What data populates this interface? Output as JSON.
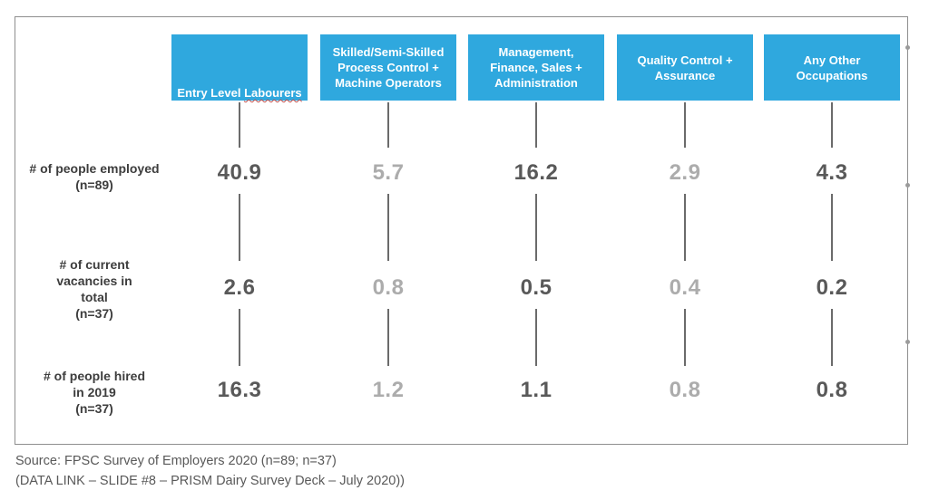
{
  "chart_data": {
    "type": "table",
    "columns": [
      "Entry Level Labourers",
      "Skilled/Semi-Skilled Process Control + Machine Operators",
      "Management, Finance, Sales + Administration",
      "Quality Control + Assurance",
      "Any Other Occupations"
    ],
    "rows": [
      {
        "label": "# of people employed (n=89)",
        "values": [
          40.9,
          5.7,
          16.2,
          2.9,
          4.3
        ]
      },
      {
        "label": "# of current vacancies in total (n=37)",
        "values": [
          2.6,
          0.8,
          0.5,
          0.4,
          0.2
        ]
      },
      {
        "label": "# of people hired in 2019 (n=37)",
        "values": [
          16.3,
          1.2,
          1.1,
          0.8,
          0.8
        ]
      }
    ],
    "source": [
      "Source: FPSC Survey of Employers 2020 (n=89; n=37)",
      "(DATA LINK – SLIDE #8 – PRISM Dairy Survey Deck – July 2020))"
    ]
  },
  "display": {
    "columns": [
      {
        "plain": "Entry Level",
        "misspelled": "Labourers"
      },
      {
        "text": "Skilled/Semi-Skilled\nProcess Control +\nMachine Operators"
      },
      {
        "text": "Management,\nFinance, Sales +\nAdministration"
      },
      {
        "text": "Quality Control +\nAssurance"
      },
      {
        "text": "Any Other\nOccupations"
      }
    ],
    "row_labels": [
      "# of people employed\n(n=89)",
      "# of current\nvacancies in\ntotal\n(n=37)",
      "# of people hired\nin 2019\n(n=37)"
    ]
  },
  "footer": {
    "line1": "Source: FPSC Survey of Employers 2020 (n=89; n=37)",
    "line2": "(DATA LINK – SLIDE #8 – PRISM Dairy Survey Deck – July 2020))"
  },
  "colors": {
    "header_blue": "#2fa8de",
    "header_text": "#ffffff",
    "value_dark": "#595959",
    "value_light": "#acacac",
    "row_label_dark": "#3d3d3d",
    "connector_gray": "#6b6b6b",
    "frame_border": "#8e8e8e",
    "spellcheck_red": "#c0504d",
    "source_text": "#595959"
  }
}
